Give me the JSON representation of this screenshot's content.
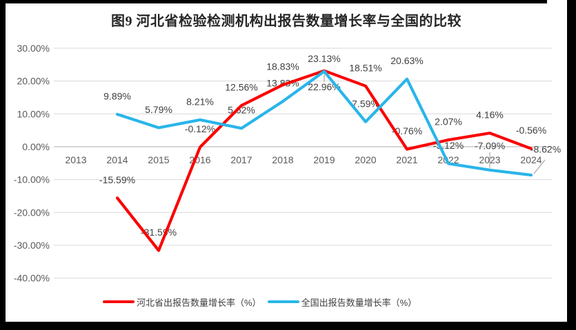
{
  "title": "图9 河北省检验检测机构出报告数量增长率与全国的比较",
  "frame": {
    "color": "#000000"
  },
  "chart_data": {
    "type": "line",
    "title": "图9 河北省检验检测机构出报告数量增长率与全国的比较",
    "categories": [
      "2013",
      "2014",
      "2015",
      "2016",
      "2017",
      "2018",
      "2019",
      "2020",
      "2021",
      "2022",
      "2023",
      "2024"
    ],
    "series": [
      {
        "name": "河北省出报告数量增长率（%）",
        "color": "#FB0000",
        "values": [
          null,
          -15.59,
          -31.59,
          -0.12,
          12.56,
          18.83,
          23.13,
          18.51,
          -0.76,
          2.07,
          4.16,
          -0.56
        ],
        "labels": [
          null,
          "-15.59%",
          "-31.59%",
          "-0.12%",
          "12.56%",
          "18.83%",
          "23.13%",
          "18.51%",
          "-0.76%",
          "2.07%",
          "4.16%",
          "-0.56%"
        ],
        "label_overrides": {
          "6": {
            "dy": -17
          }
        }
      },
      {
        "name": "全国出报告数量增长率（%）",
        "color": "#29B5E9",
        "values": [
          null,
          9.89,
          5.79,
          8.21,
          5.62,
          13.83,
          22.96,
          7.59,
          20.63,
          -5.12,
          -7.09,
          -8.62
        ],
        "labels": [
          null,
          "9.89%",
          "5.79%",
          "8.21%",
          "5.62%",
          "13.83%",
          "22.96%",
          "7.59%",
          "20.63%",
          "-5.12%",
          "-7.09%",
          "-8.62%"
        ],
        "label_overrides": {
          "6": {
            "dy": 23,
            "leader": [
              0,
              4,
              0,
              15
            ]
          },
          "10": {
            "dy": -35,
            "leader": [
              0,
              -3,
              0,
              -26
            ]
          },
          "11": {
            "dx": 21,
            "dy": -37,
            "leader": [
              4,
              -2,
              20,
              -22
            ]
          }
        }
      }
    ],
    "y_axis": {
      "min": -40,
      "max": 30,
      "step": 10,
      "tick_labels": [
        "30.00%",
        "20.00%",
        "10.00%",
        "0.00%",
        "-10.00%",
        "-20.00%",
        "-30.00%",
        "-40.00%"
      ],
      "tick_values": [
        30,
        20,
        10,
        0,
        -10,
        -20,
        -30,
        -40
      ]
    },
    "grid": true,
    "legend_position": "bottom",
    "colors": {
      "grid": "#D9D9D9",
      "zero_line": "#BFBFBF",
      "axis_text": "#595959",
      "data_label_text": "#404040",
      "leader_line": "#A6A6A6"
    }
  }
}
